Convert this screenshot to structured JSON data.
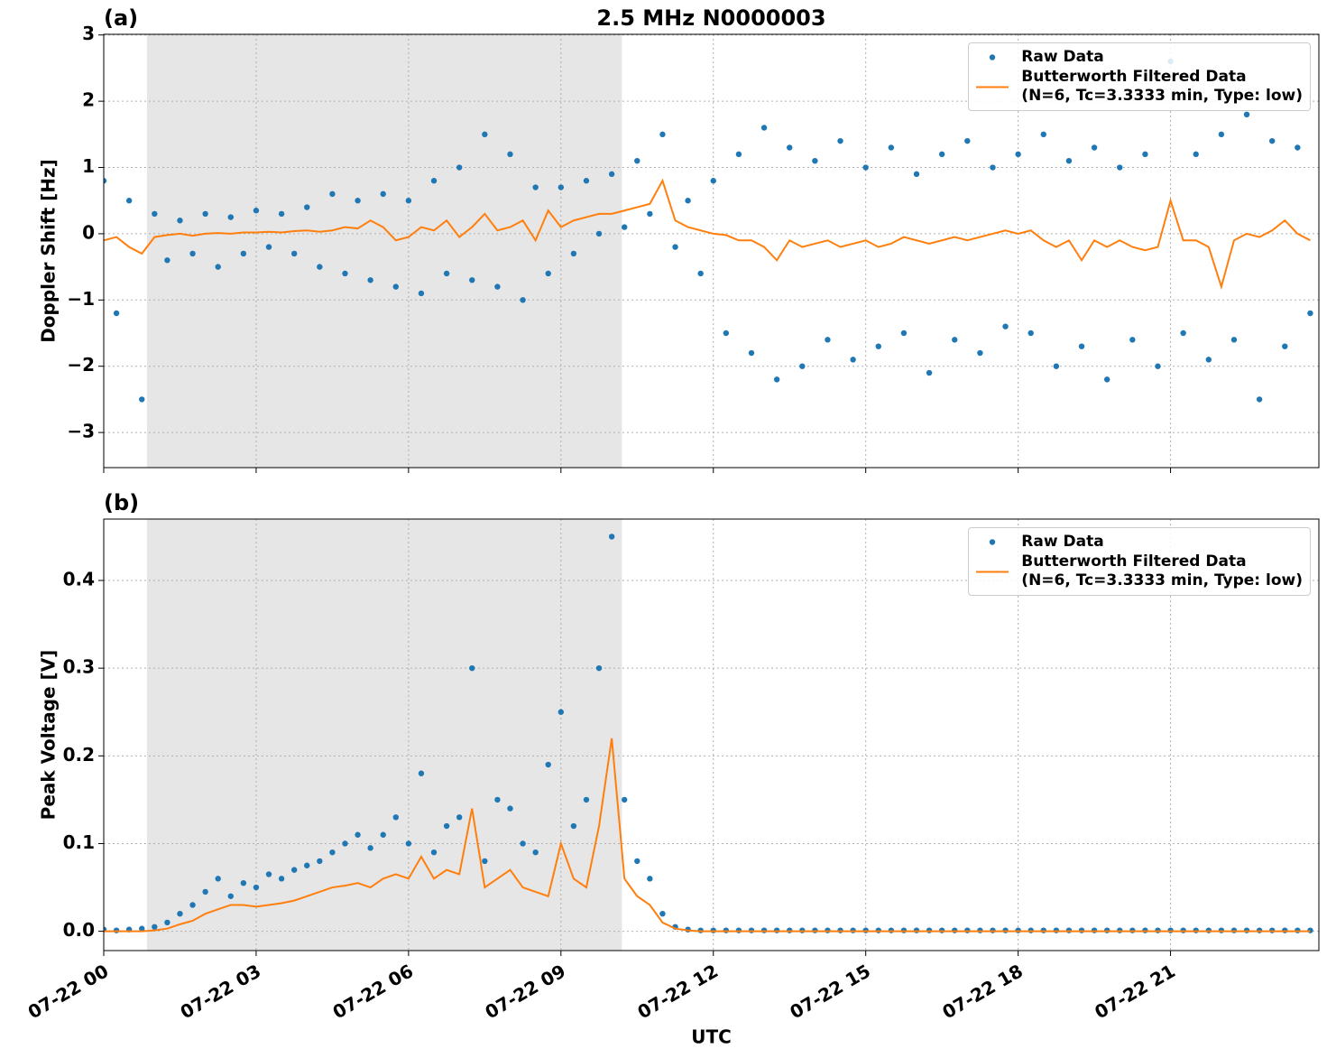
{
  "chart_data": [
    {
      "type": "line",
      "panel_label": "(a)",
      "title": "2.5 MHz N0000003",
      "y_label": "Doppler Shift [Hz]",
      "x": [
        0,
        0.25,
        0.5,
        0.75,
        1,
        1.25,
        1.5,
        1.75,
        2,
        2.25,
        2.5,
        2.75,
        3,
        3.25,
        3.5,
        3.75,
        4,
        4.25,
        4.5,
        4.75,
        5,
        5.25,
        5.5,
        5.75,
        6,
        6.25,
        6.5,
        6.75,
        7,
        7.25,
        7.5,
        7.75,
        8,
        8.25,
        8.5,
        8.75,
        9,
        9.25,
        9.5,
        9.75,
        10,
        10.25,
        10.5,
        10.75,
        11,
        11.25,
        11.5,
        11.75,
        12,
        12.25,
        12.5,
        12.75,
        13,
        13.25,
        13.5,
        13.75,
        14,
        14.25,
        14.5,
        14.75,
        15,
        15.25,
        15.5,
        15.75,
        16,
        16.25,
        16.5,
        16.75,
        17,
        17.25,
        17.5,
        17.75,
        18,
        18.25,
        18.5,
        18.75,
        19,
        19.25,
        19.5,
        19.75,
        20,
        20.25,
        20.5,
        20.75,
        21,
        21.25,
        21.5,
        21.75,
        22,
        22.25,
        22.5,
        22.75,
        23,
        23.25,
        23.5,
        23.75
      ],
      "xlim": [
        0,
        23.92
      ],
      "xticks": [
        0,
        3,
        6,
        9,
        12,
        15,
        18,
        21
      ],
      "ylim": [
        -3.53,
        3.01
      ],
      "yticks": [
        {
          "value": -3,
          "label": "−3"
        },
        {
          "value": -2,
          "label": "−2"
        },
        {
          "value": -1,
          "label": "−1"
        },
        0,
        1,
        2,
        3
      ],
      "grid": true,
      "legend": "upper right",
      "shaded_span": [
        0.85,
        10.2
      ],
      "shade_color": "#e6e6e6",
      "series": [
        {
          "name": "Raw Data",
          "style": "points",
          "color": "#1f77b4",
          "values": [
            0.8,
            -1.2,
            0.5,
            -2.5,
            0.3,
            -0.4,
            0.2,
            -0.3,
            0.3,
            -0.5,
            0.25,
            -0.3,
            0.35,
            -0.2,
            0.3,
            -0.3,
            0.4,
            -0.5,
            0.6,
            -0.6,
            0.5,
            -0.7,
            0.6,
            -0.8,
            0.5,
            -0.9,
            0.8,
            -0.6,
            1.0,
            -0.7,
            1.5,
            -0.8,
            1.2,
            -1.0,
            0.7,
            -0.6,
            0.7,
            -0.3,
            0.8,
            0,
            0.9,
            0.1,
            1.1,
            0.3,
            1.5,
            -0.2,
            0.5,
            -0.6,
            0.8,
            -1.5,
            1.2,
            -1.8,
            1.6,
            -2.2,
            1.3,
            -2.0,
            1.1,
            -1.6,
            1.4,
            -1.9,
            1.0,
            -1.7,
            1.3,
            -1.5,
            0.9,
            -2.1,
            1.2,
            -1.6,
            1.4,
            -1.8,
            1.0,
            -1.4,
            1.2,
            -1.5,
            1.5,
            -2.0,
            1.1,
            -1.7,
            1.3,
            -2.2,
            1.0,
            -1.6,
            1.2,
            -2.0,
            2.6,
            -1.5,
            1.2,
            -1.9,
            1.5,
            -1.6,
            1.8,
            -2.5,
            1.4,
            -1.7,
            1.3,
            -1.2
          ]
        },
        {
          "name": "Butterworth Filtered Data\n(N=6, Tc=3.3333 min, Type: low)",
          "style": "line",
          "color": "#ff7f0e",
          "values": [
            -0.1,
            -0.05,
            -0.2,
            -0.3,
            -0.05,
            -0.02,
            0,
            -0.03,
            0,
            0.01,
            0,
            0.02,
            0.02,
            0.03,
            0.02,
            0.04,
            0.05,
            0.03,
            0.05,
            0.1,
            0.08,
            0.2,
            0.1,
            -0.1,
            -0.05,
            0.1,
            0.05,
            0.2,
            -0.05,
            0.1,
            0.3,
            0.05,
            0.1,
            0.2,
            -0.1,
            0.35,
            0.1,
            0.2,
            0.25,
            0.3,
            0.3,
            0.35,
            0.4,
            0.45,
            0.8,
            0.2,
            0.1,
            0.05,
            0,
            -0.02,
            -0.1,
            -0.1,
            -0.2,
            -0.4,
            -0.1,
            -0.2,
            -0.15,
            -0.1,
            -0.2,
            -0.15,
            -0.1,
            -0.2,
            -0.15,
            -0.05,
            -0.1,
            -0.15,
            -0.1,
            -0.05,
            -0.1,
            -0.05,
            0,
            0.05,
            0,
            0.05,
            -0.1,
            -0.2,
            -0.1,
            -0.4,
            -0.1,
            -0.2,
            -0.1,
            -0.2,
            -0.25,
            -0.2,
            0.5,
            -0.1,
            -0.1,
            -0.2,
            -0.8,
            -0.1,
            0,
            -0.05,
            0.05,
            0.2,
            0,
            -0.1
          ]
        }
      ]
    },
    {
      "type": "line",
      "panel_label": "(b)",
      "y_label": "Peak Voltage [V]",
      "x_label": "UTC",
      "x": [
        0,
        0.25,
        0.5,
        0.75,
        1,
        1.25,
        1.5,
        1.75,
        2,
        2.25,
        2.5,
        2.75,
        3,
        3.25,
        3.5,
        3.75,
        4,
        4.25,
        4.5,
        4.75,
        5,
        5.25,
        5.5,
        5.75,
        6,
        6.25,
        6.5,
        6.75,
        7,
        7.25,
        7.5,
        7.75,
        8,
        8.25,
        8.5,
        8.75,
        9,
        9.25,
        9.5,
        9.75,
        10,
        10.25,
        10.5,
        10.75,
        11,
        11.25,
        11.5,
        11.75,
        12,
        12.25,
        12.5,
        12.75,
        13,
        13.25,
        13.5,
        13.75,
        14,
        14.25,
        14.5,
        14.75,
        15,
        15.25,
        15.5,
        15.75,
        16,
        16.25,
        16.5,
        16.75,
        17,
        17.25,
        17.5,
        17.75,
        18,
        18.25,
        18.5,
        18.75,
        19,
        19.25,
        19.5,
        19.75,
        20,
        20.25,
        20.5,
        20.75,
        21,
        21.25,
        21.5,
        21.75,
        22,
        22.25,
        22.5,
        22.75,
        23,
        23.25,
        23.5,
        23.75
      ],
      "xlim": [
        0,
        23.92
      ],
      "xticks": [
        {
          "value": 0,
          "label": "07-22 00"
        },
        {
          "value": 3,
          "label": "07-22 03"
        },
        {
          "value": 6,
          "label": "07-22 06"
        },
        {
          "value": 9,
          "label": "07-22 09"
        },
        {
          "value": 12,
          "label": "07-22 12"
        },
        {
          "value": 15,
          "label": "07-22 15"
        },
        {
          "value": 18,
          "label": "07-22 18"
        },
        {
          "value": 21,
          "label": "07-22 21"
        }
      ],
      "ylim": [
        -0.022,
        0.47
      ],
      "yticks": [
        {
          "value": 0,
          "label": "0.0"
        },
        {
          "value": 0.1,
          "label": "0.1"
        },
        {
          "value": 0.2,
          "label": "0.2"
        },
        {
          "value": 0.3,
          "label": "0.3"
        },
        {
          "value": 0.4,
          "label": "0.4"
        }
      ],
      "grid": true,
      "legend": "upper right",
      "shaded_span": [
        0.85,
        10.2
      ],
      "shade_color": "#e6e6e6",
      "series": [
        {
          "name": "Raw Data",
          "style": "points",
          "color": "#1f77b4",
          "values": [
            0.002,
            0.001,
            0.002,
            0.003,
            0.005,
            0.01,
            0.02,
            0.03,
            0.045,
            0.06,
            0.04,
            0.055,
            0.05,
            0.065,
            0.06,
            0.07,
            0.075,
            0.08,
            0.09,
            0.1,
            0.11,
            0.095,
            0.11,
            0.13,
            0.1,
            0.18,
            0.09,
            0.12,
            0.13,
            0.3,
            0.08,
            0.15,
            0.14,
            0.1,
            0.09,
            0.19,
            0.25,
            0.12,
            0.15,
            0.3,
            0.45,
            0.15,
            0.08,
            0.06,
            0.02,
            0.005,
            0.002,
            0.001,
            0.001,
            0.001,
            0.001,
            0.001,
            0.001,
            0.001,
            0.001,
            0.001,
            0.001,
            0.001,
            0.001,
            0.001,
            0.001,
            0.001,
            0.001,
            0.001,
            0.001,
            0.001,
            0.001,
            0.001,
            0.001,
            0.001,
            0.001,
            0.001,
            0.001,
            0.001,
            0.001,
            0.001,
            0.001,
            0.001,
            0.001,
            0.001,
            0.001,
            0.001,
            0.001,
            0.001,
            0.001,
            0.001,
            0.001,
            0.001,
            0.001,
            0.001,
            0.001,
            0.001,
            0.001,
            0.001,
            0.001,
            0.001
          ]
        },
        {
          "name": "Butterworth Filtered Data\n(N=6, Tc=3.3333 min, Type: low)",
          "style": "line",
          "color": "#ff7f0e",
          "values": [
            0,
            0,
            0,
            0,
            0.001,
            0.003,
            0.008,
            0.012,
            0.02,
            0.025,
            0.03,
            0.03,
            0.028,
            0.03,
            0.032,
            0.035,
            0.04,
            0.045,
            0.05,
            0.052,
            0.055,
            0.05,
            0.06,
            0.065,
            0.06,
            0.085,
            0.06,
            0.07,
            0.065,
            0.14,
            0.05,
            0.06,
            0.07,
            0.05,
            0.045,
            0.04,
            0.1,
            0.06,
            0.05,
            0.12,
            0.22,
            0.06,
            0.04,
            0.03,
            0.01,
            0.003,
            0.001,
            0,
            0,
            0,
            0,
            0,
            0,
            0,
            0,
            0,
            0,
            0,
            0,
            0,
            0,
            0,
            0,
            0,
            0,
            0,
            0,
            0,
            0,
            0,
            0,
            0,
            0,
            0,
            0,
            0,
            0,
            0,
            0,
            0,
            0,
            0,
            0,
            0,
            0,
            0,
            0,
            0,
            0,
            0,
            0,
            0,
            0,
            0,
            0,
            0
          ]
        }
      ]
    }
  ]
}
